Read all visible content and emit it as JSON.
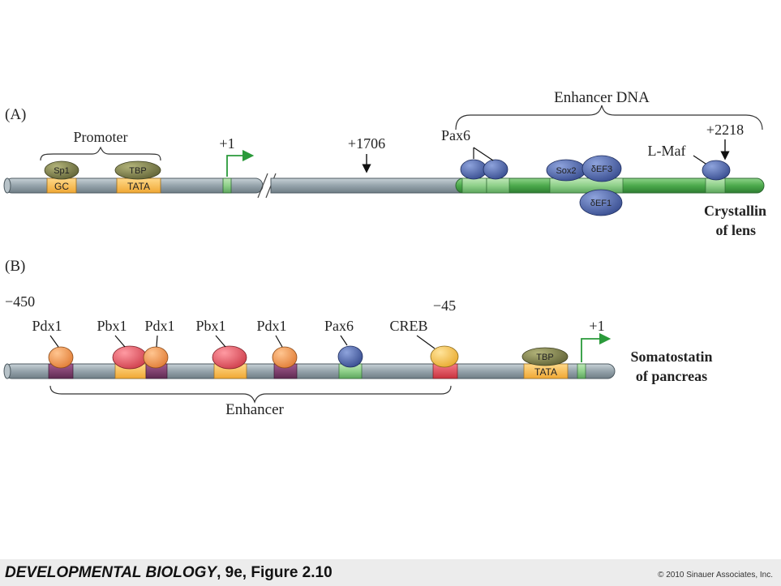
{
  "panel_a": {
    "label": "(A)",
    "promoter_label": "Promoter",
    "sp1": "Sp1",
    "gc": "GC",
    "tbp": "TBP",
    "tata": "TATA",
    "tss": "+1",
    "pos_1706": "+1706",
    "enhancer_label": "Enhancer DNA",
    "pax6": "Pax6",
    "sox2": "Sox2",
    "def3": "δEF3",
    "def1": "δEF1",
    "lmaf": "L-Maf",
    "pos_2218": "+2218",
    "gene_line1": "Crystallin",
    "gene_line2": "of lens"
  },
  "panel_b": {
    "label": "(B)",
    "pos_450": "−450",
    "pdx1_a": "Pdx1",
    "pbx1_a": "Pbx1",
    "pdx1_b": "Pdx1",
    "pbx1_b": "Pbx1",
    "pdx1_c": "Pdx1",
    "pax6": "Pax6",
    "creb": "CREB",
    "pos_45": "−45",
    "tbp": "TBP",
    "tata": "TATA",
    "tss": "+1",
    "enhancer_label": "Enhancer",
    "gene_line1": "Somatostatin",
    "gene_line2": "of pancreas"
  },
  "footer": {
    "book_title": "DEVELOPMENTAL BIOLOGY",
    "edition": ", 9e, Figure 2.10",
    "copyright": "© 2010 Sinauer Associates, Inc."
  },
  "colors": {
    "dna_gray": "#9aa8b0",
    "dna_green": "#4caa4c",
    "protein_blue": "#4a62a8",
    "protein_olive": "#7b7d4a",
    "site_orange": "#f5b94a",
    "site_purple": "#7a3c6a",
    "site_red": "#e0485a",
    "pdx1_orange": "#ee9a55",
    "pbx1_red": "#e0606a",
    "creb_yellow": "#f2c04a",
    "arrow_green": "#2a9a3a"
  }
}
